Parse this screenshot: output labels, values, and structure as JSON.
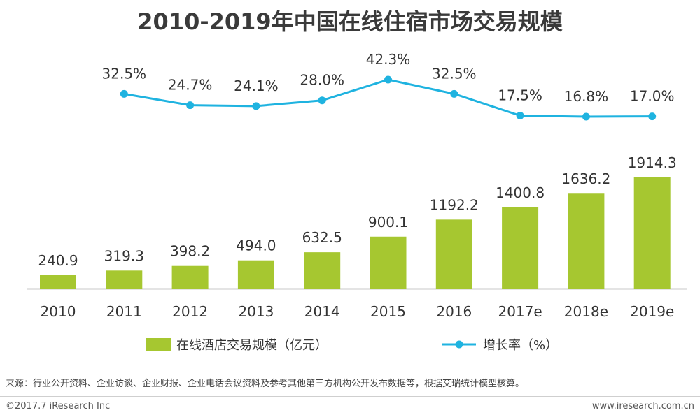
{
  "header": {
    "title": "2010-2019年中国在线住宿市场交易规模"
  },
  "chart_data": {
    "type": "bar",
    "title": "2010-2019年中国在线住宿市场交易规模",
    "categories": [
      "2010",
      "2011",
      "2012",
      "2013",
      "2014",
      "2015",
      "2016",
      "2017e",
      "2018e",
      "2019e"
    ],
    "series": [
      {
        "name": "在线酒店交易规模（亿元）",
        "type": "bar",
        "color": "#a6c730",
        "values": [
          240.9,
          319.3,
          398.2,
          494.0,
          632.5,
          900.1,
          1192.2,
          1400.8,
          1636.2,
          1914.3
        ],
        "labels": [
          "240.9",
          "319.3",
          "398.2",
          "494.0",
          "632.5",
          "900.1",
          "1192.2",
          "1400.8",
          "1636.2",
          "1914.3"
        ]
      },
      {
        "name": "增长率（%）",
        "type": "line",
        "color": "#1fb3e0",
        "values": [
          32.5,
          24.7,
          24.1,
          28.0,
          42.3,
          32.5,
          17.5,
          16.8,
          17.0
        ],
        "x": [
          "2011",
          "2012",
          "2013",
          "2014",
          "2015",
          "2016",
          "2017e",
          "2018e",
          "2019e"
        ],
        "labels": [
          "32.5%",
          "24.7%",
          "24.1%",
          "28.0%",
          "42.3%",
          "32.5%",
          "17.5%",
          "16.8%",
          "17.0%"
        ]
      }
    ],
    "grid": false,
    "legend": "bottom-center"
  },
  "footer": {
    "source": "来源：行业公开资料、企业访谈、企业财报、企业电话会议资料及参考其他第三方机构公开发布数据等，根据艾瑞统计模型核算。",
    "copyright": "©2017.7 iResearch Inc",
    "website": "www.iresearch.com.cn"
  }
}
